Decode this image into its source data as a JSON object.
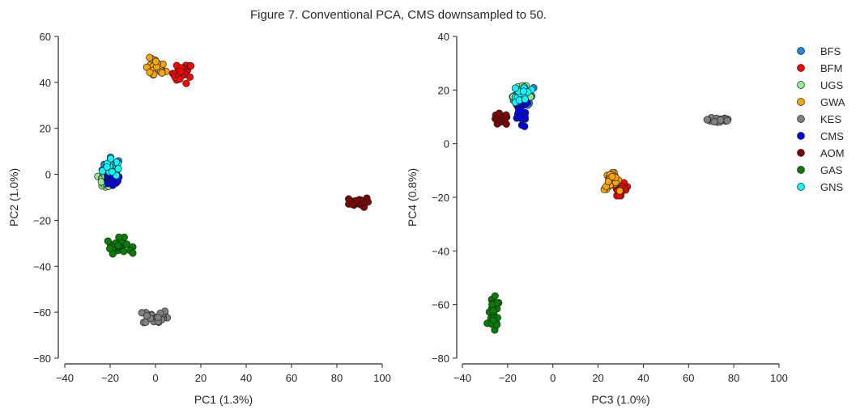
{
  "figure": {
    "title": "Figure 7. Conventional PCA, CMS downsampled to 50."
  },
  "legend": {
    "placement": "right",
    "entries": [
      {
        "name": "BFS",
        "color": "#1e88e5"
      },
      {
        "name": "BFM",
        "color": "#ff0000"
      },
      {
        "name": "UGS",
        "color": "#90ee90"
      },
      {
        "name": "GWA",
        "color": "#ffa500"
      },
      {
        "name": "KES",
        "color": "#808080"
      },
      {
        "name": "CMS",
        "color": "#0000ee"
      },
      {
        "name": "AOM",
        "color": "#800000"
      },
      {
        "name": "GAS",
        "color": "#007f00"
      },
      {
        "name": "GNS",
        "color": "#00ffff"
      }
    ]
  },
  "chart_data": [
    {
      "type": "scatter",
      "xlabel": "PC1 (1.3%)",
      "ylabel": "PC2 (1.0%)",
      "xlim": [
        -40,
        100
      ],
      "ylim": [
        -80,
        60
      ],
      "xticks": [
        "−40",
        "−20",
        "0",
        "20",
        "40",
        "60",
        "80",
        "100"
      ],
      "yticks": [
        "−80",
        "−60",
        "−40",
        "−20",
        "0",
        "20",
        "40",
        "60"
      ],
      "grid": false,
      "series": [
        {
          "name": "BFS",
          "center": [
            -19,
            3
          ],
          "spread": [
            4,
            4
          ]
        },
        {
          "name": "BFM",
          "center": [
            12,
            44
          ],
          "spread": [
            4,
            4
          ]
        },
        {
          "name": "UGS",
          "center": [
            -22,
            -3
          ],
          "spread": [
            3,
            3
          ]
        },
        {
          "name": "GWA",
          "center": [
            0,
            46
          ],
          "spread": [
            4,
            4
          ]
        },
        {
          "name": "KES",
          "center": [
            0,
            -62
          ],
          "spread": [
            5,
            3
          ]
        },
        {
          "name": "CMS",
          "center": [
            -19,
            -2
          ],
          "spread": [
            4,
            3
          ]
        },
        {
          "name": "AOM",
          "center": [
            90,
            -12
          ],
          "spread": [
            4,
            2
          ]
        },
        {
          "name": "GAS",
          "center": [
            -16,
            -31
          ],
          "spread": [
            5,
            3
          ]
        },
        {
          "name": "GNS",
          "center": [
            -20,
            3
          ],
          "spread": [
            3,
            4
          ]
        }
      ]
    },
    {
      "type": "scatter",
      "xlabel": "PC3 (1.0%)",
      "ylabel": "PC4 (0.8%)",
      "xlim": [
        -40,
        100
      ],
      "ylim": [
        -80,
        40
      ],
      "xticks": [
        "−40",
        "−20",
        "0",
        "20",
        "40",
        "60",
        "80",
        "100"
      ],
      "yticks": [
        "−80",
        "−60",
        "−40",
        "−20",
        "0",
        "20",
        "40"
      ],
      "grid": false,
      "series": [
        {
          "name": "BFS",
          "center": [
            -13,
            17
          ],
          "spread": [
            4,
            4
          ]
        },
        {
          "name": "BFM",
          "center": [
            30,
            -17
          ],
          "spread": [
            3,
            2
          ]
        },
        {
          "name": "UGS",
          "center": [
            -14,
            18
          ],
          "spread": [
            4,
            3
          ]
        },
        {
          "name": "GWA",
          "center": [
            26,
            -14
          ],
          "spread": [
            3,
            3
          ]
        },
        {
          "name": "KES",
          "center": [
            74,
            9
          ],
          "spread": [
            5,
            1.5
          ]
        },
        {
          "name": "CMS",
          "center": [
            -14,
            11
          ],
          "spread": [
            3,
            5
          ]
        },
        {
          "name": "AOM",
          "center": [
            -23,
            9
          ],
          "spread": [
            3,
            2
          ]
        },
        {
          "name": "GAS",
          "center": [
            -26,
            -64
          ],
          "spread": [
            2.5,
            6
          ]
        },
        {
          "name": "GNS",
          "center": [
            -13,
            19
          ],
          "spread": [
            3,
            3
          ]
        }
      ]
    }
  ]
}
